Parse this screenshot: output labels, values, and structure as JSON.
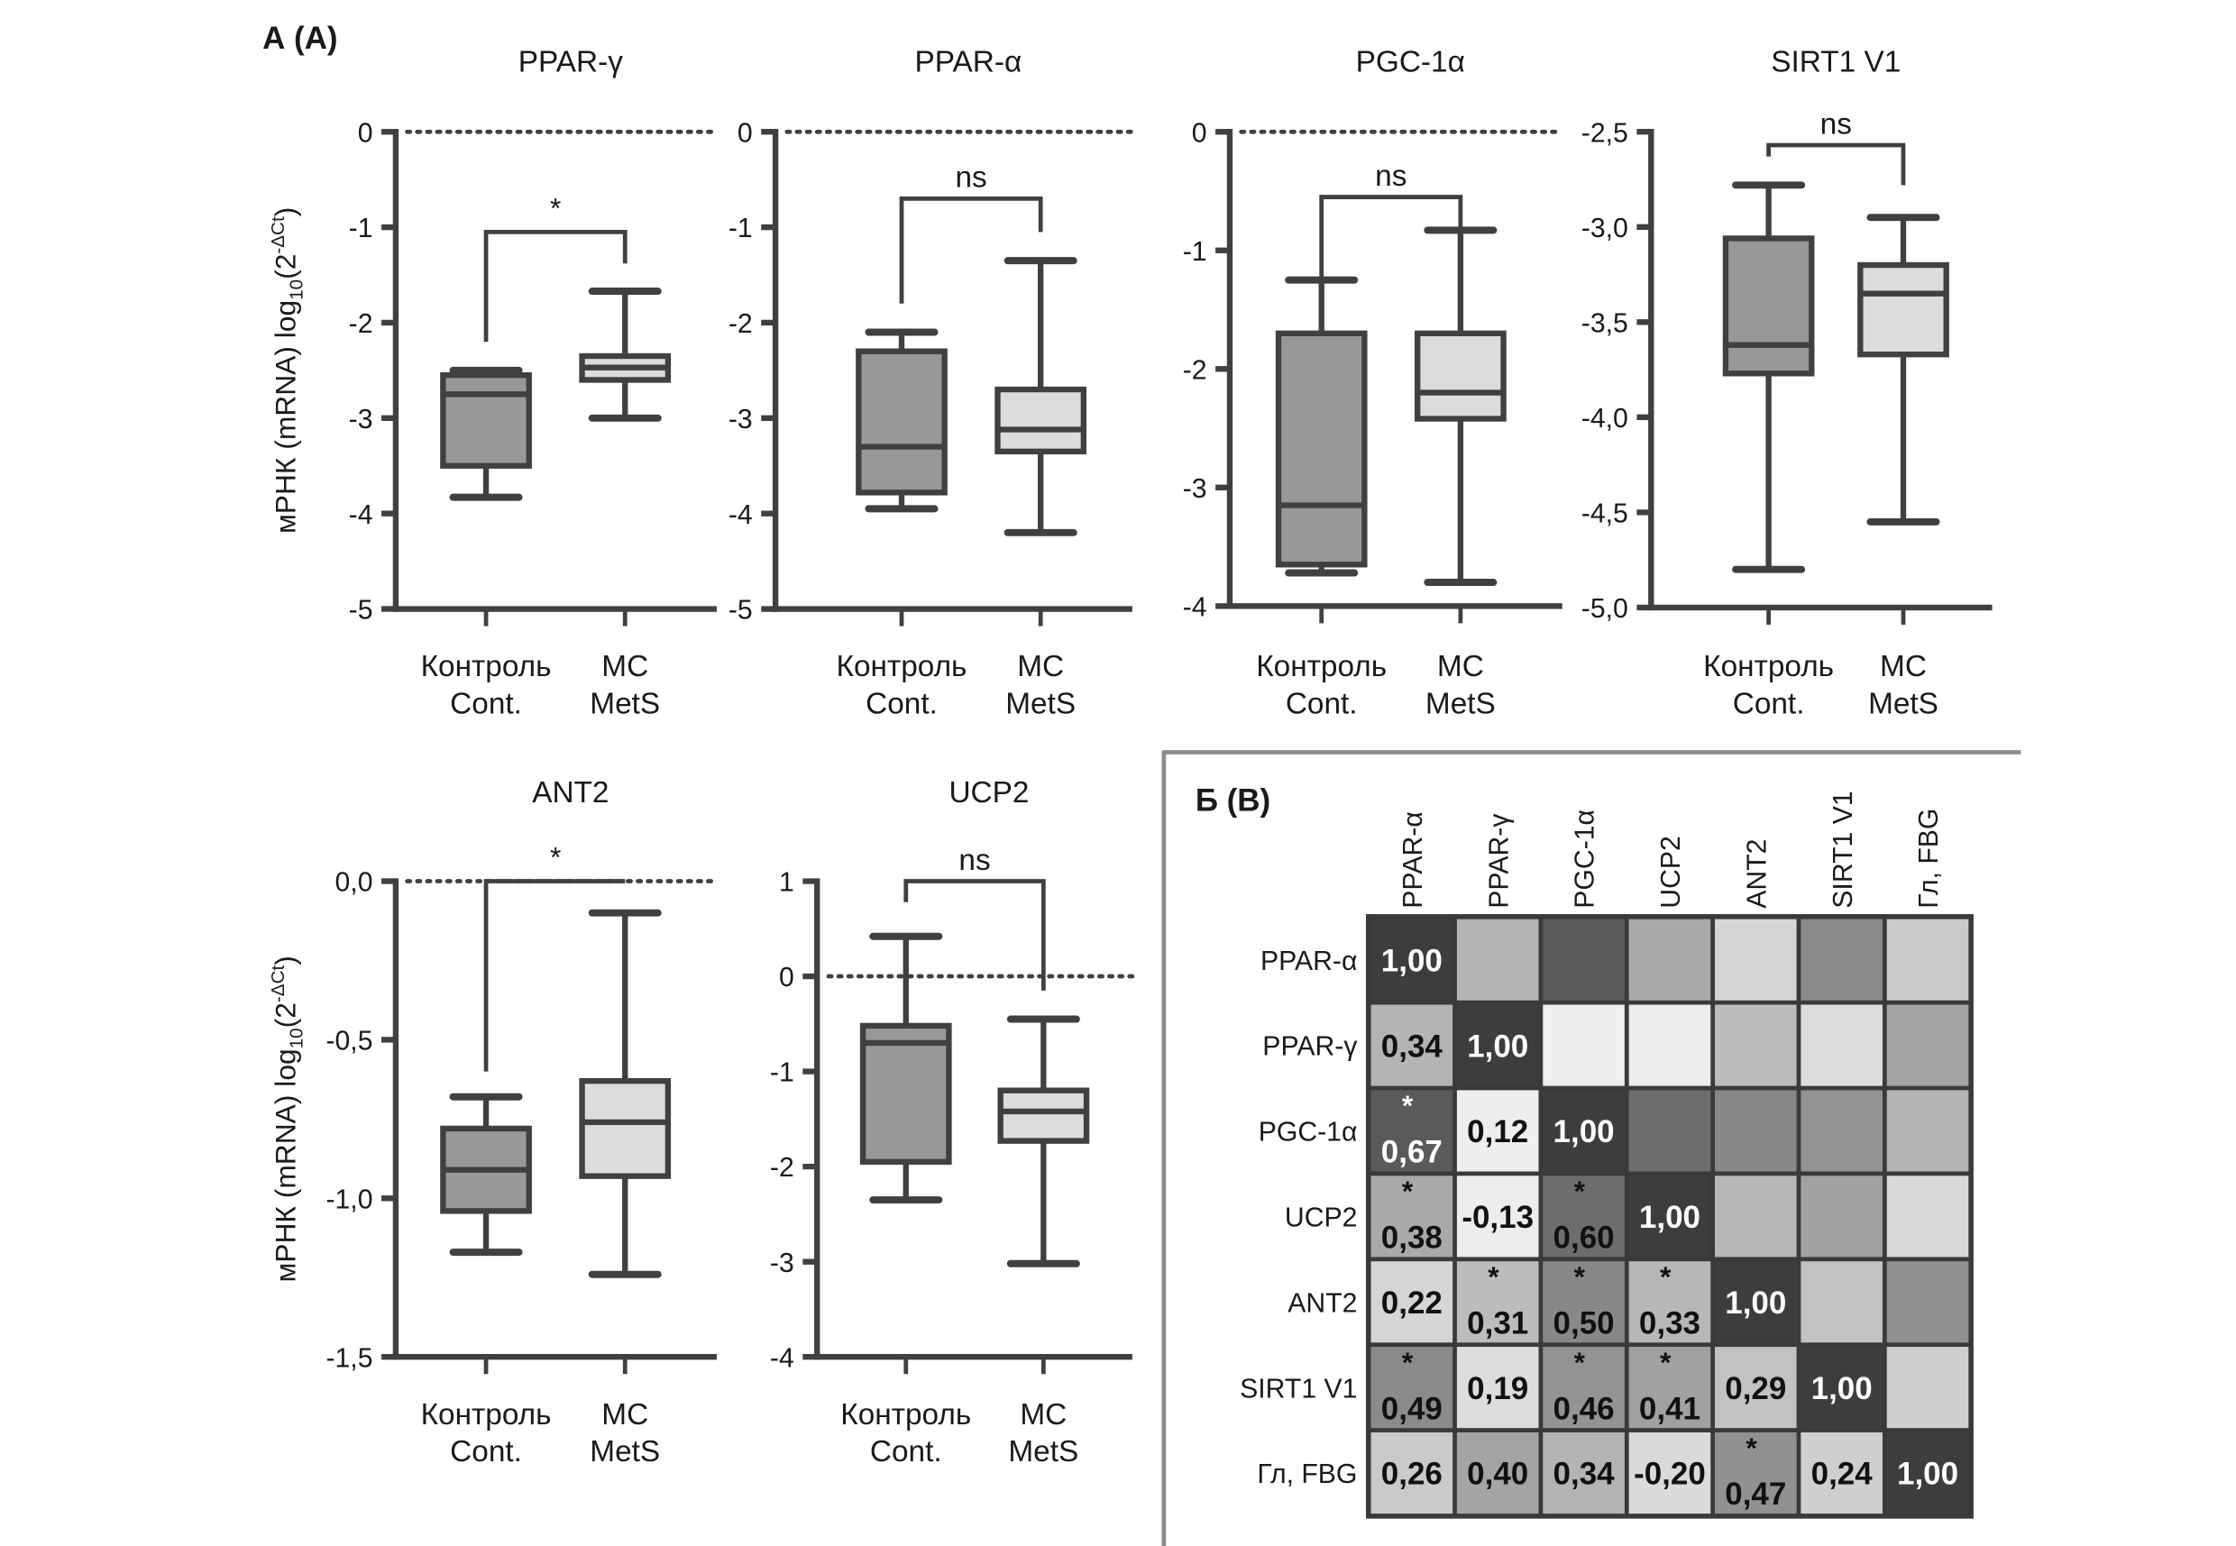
{
  "panel_a_label": "А (А)",
  "panel_b_label": "Б (B)",
  "y_axis_label": {
    "main": "мРНК (mRNA) log",
    "sub": "10",
    "open": "(2",
    "sup": "-ΔCt",
    "close": ")"
  },
  "categories": [
    {
      "ru": "Контроль",
      "en": "Cont."
    },
    {
      "ru": "МС",
      "en": "MetS"
    }
  ],
  "chart_data": [
    {
      "type": "box",
      "title": "PPAR-γ",
      "ylim": [
        -5,
        0
      ],
      "ticks": [
        0,
        -1,
        -2,
        -3,
        -4,
        -5
      ],
      "tick_labels": [
        "0",
        "-1",
        "-2",
        "-3",
        "-4",
        "-5"
      ],
      "reference_line": 0,
      "significance": "*",
      "bracket": {
        "top": -1.05,
        "left_end": -2.2,
        "right_end": -1.38
      },
      "boxes": [
        {
          "min": -3.83,
          "q1": -3.5,
          "median": -2.75,
          "q3": -2.55,
          "max": -2.5,
          "fill": "#989898"
        },
        {
          "min": -3.0,
          "q1": -2.6,
          "median": -2.47,
          "q3": -2.35,
          "max": -1.67,
          "fill": "#dcdcdc"
        }
      ]
    },
    {
      "type": "box",
      "title": "PPAR-α",
      "ylim": [
        -5,
        0
      ],
      "ticks": [
        0,
        -1,
        -2,
        -3,
        -4,
        -5
      ],
      "tick_labels": [
        "0",
        "-1",
        "-2",
        "-3",
        "-4",
        "-5"
      ],
      "reference_line": 0,
      "significance": "ns",
      "bracket": {
        "top": -0.7,
        "left_end": -1.8,
        "right_end": -1.05
      },
      "boxes": [
        {
          "min": -3.95,
          "q1": -3.78,
          "median": -3.3,
          "q3": -2.3,
          "max": -2.1,
          "fill": "#989898"
        },
        {
          "min": -4.2,
          "q1": -3.35,
          "median": -3.12,
          "q3": -2.7,
          "max": -1.35,
          "fill": "#dcdcdc"
        }
      ]
    },
    {
      "type": "box",
      "title": "PGC-1α",
      "ylim": [
        -4,
        0
      ],
      "ticks": [
        0,
        -1,
        -2,
        -3,
        -4
      ],
      "tick_labels": [
        "0",
        "-1",
        "-2",
        "-3",
        "-4"
      ],
      "reference_line": 0,
      "significance": "ns",
      "bracket": {
        "top": -0.55,
        "left_end": -1.35,
        "right_end": -0.8
      },
      "boxes": [
        {
          "min": -3.72,
          "q1": -3.65,
          "median": -3.15,
          "q3": -1.7,
          "max": -1.25,
          "fill": "#989898"
        },
        {
          "min": -3.8,
          "q1": -2.42,
          "median": -2.2,
          "q3": -1.7,
          "max": -0.83,
          "fill": "#dcdcdc"
        }
      ]
    },
    {
      "type": "box",
      "title": "SIRT1 V1",
      "ylim": [
        -5.0,
        -2.5
      ],
      "ticks": [
        -2.5,
        -3.0,
        -3.5,
        -4.0,
        -4.5,
        -5.0
      ],
      "tick_labels": [
        "-2,5",
        "-3,0",
        "-3,5",
        "-4,0",
        "-4,5",
        "-5,0"
      ],
      "reference_line": null,
      "significance": "ns",
      "bracket": {
        "top": -2.57,
        "left_end": -2.63,
        "right_end": -2.78
      },
      "boxes": [
        {
          "min": -4.8,
          "q1": -3.77,
          "median": -3.62,
          "q3": -3.06,
          "max": -2.78,
          "fill": "#989898"
        },
        {
          "min": -4.55,
          "q1": -3.67,
          "median": -3.35,
          "q3": -3.2,
          "max": -2.95,
          "fill": "#dcdcdc"
        }
      ]
    },
    {
      "type": "box",
      "title": "ANT2",
      "ylim": [
        -1.5,
        0.0
      ],
      "ticks": [
        0.0,
        -0.5,
        -1.0,
        -1.5
      ],
      "tick_labels": [
        "0,0",
        "-0,5",
        "-1,0",
        "-1,5"
      ],
      "reference_line": 0,
      "significance": "*",
      "bracket": {
        "top": 0.0,
        "left_end": -0.6,
        "right_end": 0.0
      },
      "boxes": [
        {
          "min": -1.17,
          "q1": -1.04,
          "median": -0.91,
          "q3": -0.78,
          "max": -0.68,
          "fill": "#989898"
        },
        {
          "min": -1.24,
          "q1": -0.93,
          "median": -0.76,
          "q3": -0.63,
          "max": -0.1,
          "fill": "#dcdcdc"
        }
      ]
    },
    {
      "type": "box",
      "title": "UCP2",
      "ylim": [
        -4,
        1
      ],
      "ticks": [
        1,
        0,
        -1,
        -2,
        -3,
        -4
      ],
      "tick_labels": [
        "1",
        "0",
        "-1",
        "-2",
        "-3",
        "-4"
      ],
      "reference_line": 0,
      "significance": "ns",
      "bracket": {
        "top": 1.0,
        "left_end": 0.78,
        "right_end": -0.15
      },
      "boxes": [
        {
          "min": -2.35,
          "q1": -1.95,
          "median": -0.7,
          "q3": -0.52,
          "max": 0.42,
          "fill": "#989898"
        },
        {
          "min": -3.02,
          "q1": -1.73,
          "median": -1.42,
          "q3": -1.2,
          "max": -0.45,
          "fill": "#dcdcdc"
        }
      ]
    },
    {
      "type": "heatmap",
      "labels": [
        "PPAR-α",
        "PPAR-γ",
        "PGC-1α",
        "UCP2",
        "ANT2",
        "SIRT1 V1",
        "Гл, FBG"
      ],
      "values": [
        [
          "1,00"
        ],
        [
          "0,34",
          "1,00"
        ],
        [
          "0,67",
          "0,12",
          "1,00"
        ],
        [
          "0,38",
          "-0,13",
          "0,60",
          "1,00"
        ],
        [
          "0,22",
          "0,31",
          "0,50",
          "0,33",
          "1,00"
        ],
        [
          "0,49",
          "0,19",
          "0,46",
          "0,41",
          "0,29",
          "1,00"
        ],
        [
          "0,26",
          "0,40",
          "0,34",
          "-0,20",
          "0,47",
          "0,24",
          "1,00"
        ]
      ],
      "significant": [
        [
          false
        ],
        [
          false,
          false
        ],
        [
          true,
          false,
          false
        ],
        [
          true,
          false,
          true,
          false
        ],
        [
          false,
          true,
          true,
          true,
          false
        ],
        [
          true,
          false,
          true,
          true,
          false,
          false
        ],
        [
          false,
          false,
          false,
          false,
          true,
          false,
          false
        ]
      ],
      "star": "*",
      "diagonal_color": "#3d3d3d"
    }
  ]
}
